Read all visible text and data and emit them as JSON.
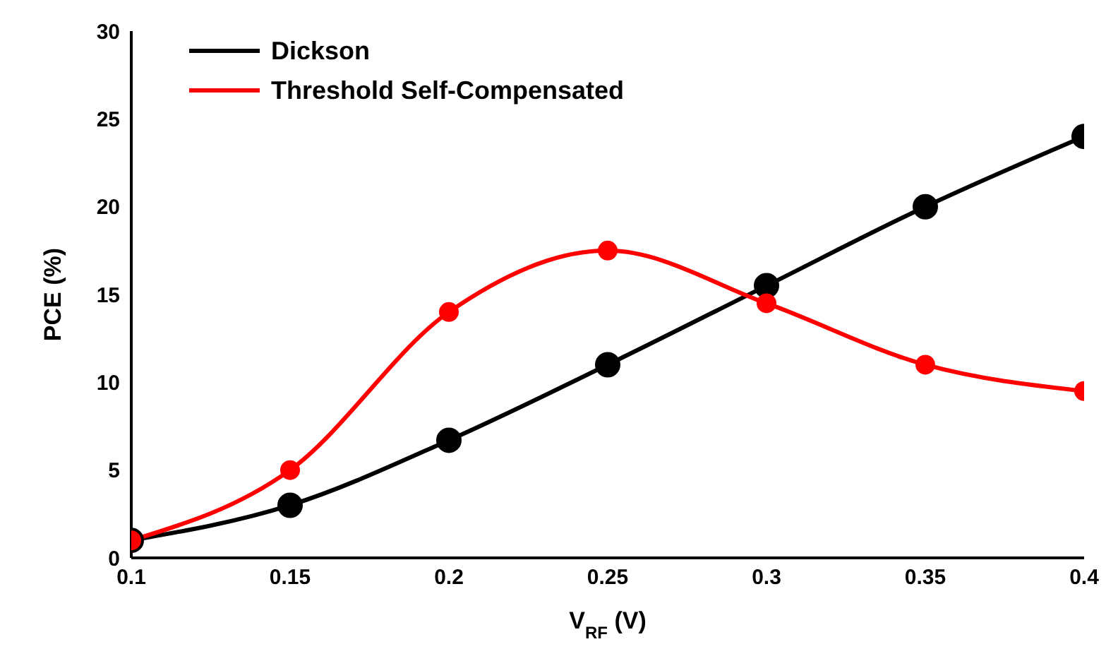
{
  "chart_data": {
    "type": "line",
    "xlabel": "V$_{RF}$ (V)",
    "ylabel": "PCE (%)",
    "x": [
      0.1,
      0.15,
      0.2,
      0.25,
      0.3,
      0.35,
      0.4
    ],
    "series": [
      {
        "name": "Dickson",
        "color": "#000000",
        "values": [
          1,
          3,
          6.7,
          11,
          15.5,
          20,
          24
        ]
      },
      {
        "name": "Threshold Self-Compensated",
        "color": "#ff0000",
        "values": [
          1,
          5,
          14,
          17.5,
          14.5,
          11,
          9.5
        ]
      }
    ],
    "xlim": [
      0.1,
      0.4
    ],
    "xticks": [
      0.1,
      0.15,
      0.2,
      0.25,
      0.3,
      0.35,
      0.4
    ],
    "ylim": [
      0,
      30
    ],
    "yticks": [
      0,
      5,
      10,
      15,
      20,
      25,
      30
    ],
    "grid": false,
    "legend": "top left",
    "marker": "circle",
    "line_style": "solid"
  }
}
